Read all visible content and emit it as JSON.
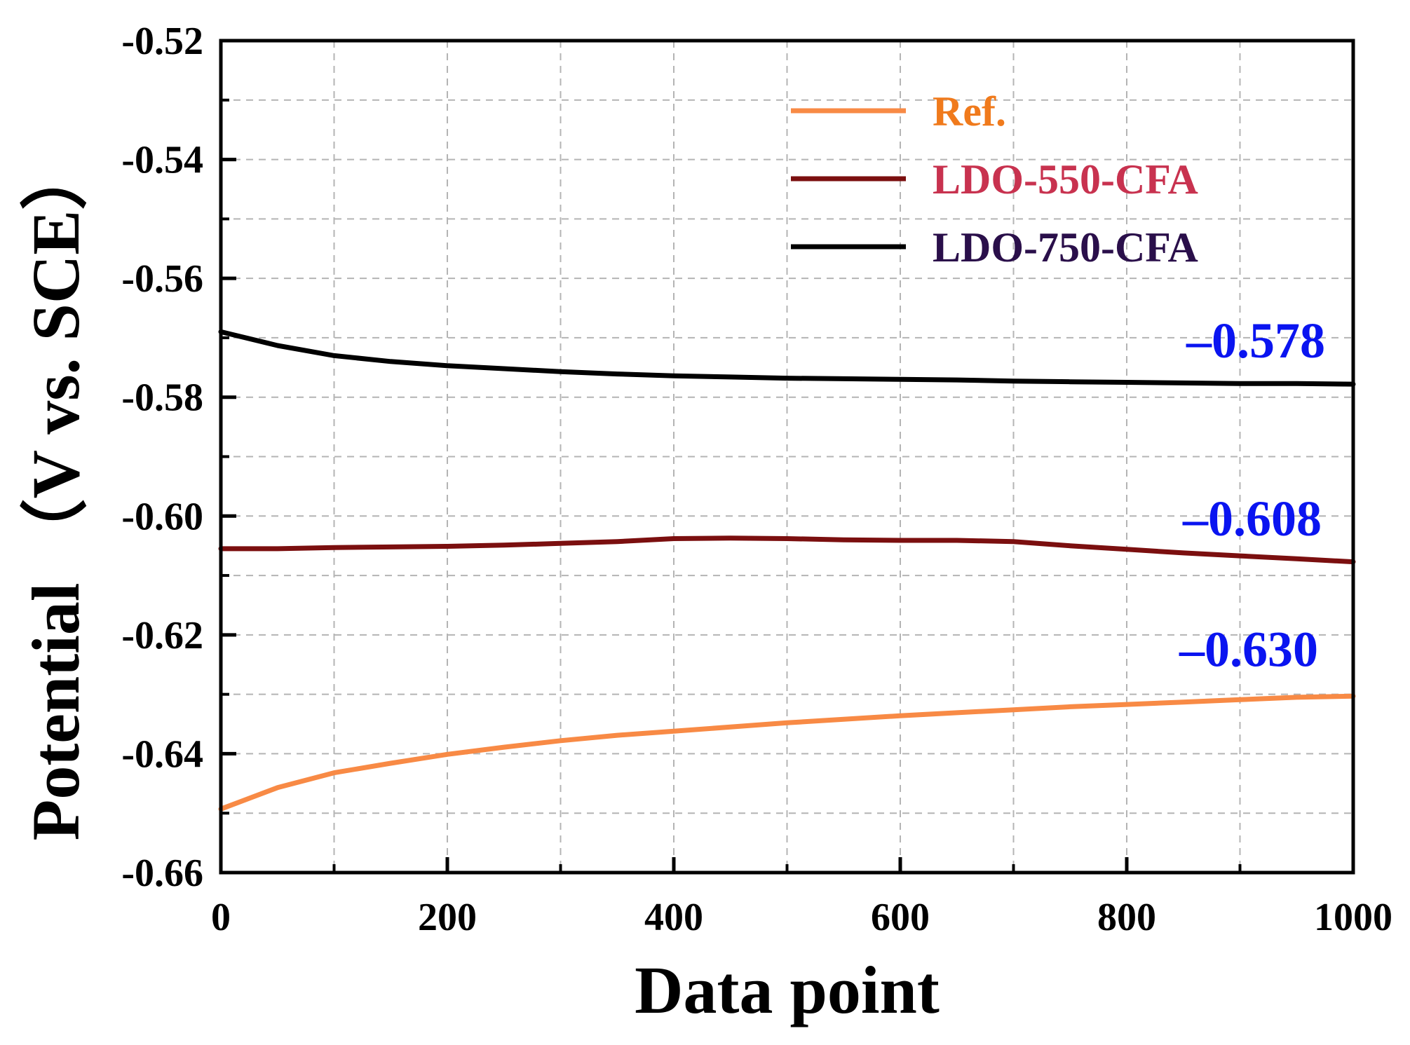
{
  "chart_data": {
    "type": "line",
    "xlabel": "Data point",
    "ylabel": "Potential （V vs. SCE）",
    "xlim": [
      0,
      1000
    ],
    "ylim": [
      -0.66,
      -0.52
    ],
    "xticks": [
      0,
      200,
      400,
      600,
      800,
      1000
    ],
    "yticks": [
      -0.52,
      -0.54,
      -0.56,
      -0.58,
      -0.6,
      -0.62,
      -0.64,
      -0.66
    ],
    "xtick_labels": [
      "0",
      "200",
      "400",
      "600",
      "800",
      "1000"
    ],
    "ytick_labels": [
      "-0.52",
      "-0.54",
      "-0.56",
      "-0.58",
      "-0.60",
      "-0.62",
      "-0.64",
      "-0.66"
    ],
    "grid": true,
    "legend_position": "top-right",
    "series": [
      {
        "name": "Ref.",
        "color": "#f88a45",
        "label_color": "#f07a1c",
        "x": [
          0,
          50,
          100,
          150,
          200,
          250,
          300,
          350,
          400,
          450,
          500,
          550,
          600,
          650,
          700,
          750,
          800,
          850,
          900,
          950,
          1000
        ],
        "y": [
          -0.6493,
          -0.6457,
          -0.6432,
          -0.6416,
          -0.6401,
          -0.6389,
          -0.6378,
          -0.6369,
          -0.6362,
          -0.6355,
          -0.6348,
          -0.6342,
          -0.6336,
          -0.6331,
          -0.6326,
          -0.6321,
          -0.6317,
          -0.6313,
          -0.6309,
          -0.6305,
          -0.6303
        ]
      },
      {
        "name": "LDO-550-CFA",
        "color": "#7b0f0f",
        "label_color": "#c8324f",
        "x": [
          0,
          50,
          100,
          150,
          200,
          250,
          300,
          350,
          400,
          450,
          500,
          550,
          600,
          650,
          700,
          750,
          800,
          850,
          900,
          950,
          1000
        ],
        "y": [
          -0.6055,
          -0.6055,
          -0.6053,
          -0.6052,
          -0.6051,
          -0.6049,
          -0.6046,
          -0.6043,
          -0.6038,
          -0.6037,
          -0.6038,
          -0.604,
          -0.6041,
          -0.6041,
          -0.6043,
          -0.605,
          -0.6056,
          -0.6062,
          -0.6067,
          -0.6072,
          -0.6077
        ]
      },
      {
        "name": "LDO-750-CFA",
        "color": "#000000",
        "label_color": "#2a0f4a",
        "x": [
          0,
          50,
          100,
          150,
          200,
          250,
          300,
          350,
          400,
          450,
          500,
          550,
          600,
          650,
          700,
          750,
          800,
          850,
          900,
          950,
          1000
        ],
        "y": [
          -0.569,
          -0.5713,
          -0.573,
          -0.574,
          -0.5747,
          -0.5752,
          -0.5757,
          -0.5761,
          -0.5764,
          -0.5766,
          -0.5768,
          -0.5769,
          -0.577,
          -0.5771,
          -0.5773,
          -0.5774,
          -0.5775,
          -0.5776,
          -0.5777,
          -0.5777,
          -0.5778
        ]
      }
    ],
    "annotations": [
      {
        "text": "–0.578",
        "x": 1000,
        "y": -0.578
      },
      {
        "text": "–0.608",
        "x": 1000,
        "y": -0.608
      },
      {
        "text": "–0.630",
        "x": 1000,
        "y": -0.63
      }
    ]
  }
}
